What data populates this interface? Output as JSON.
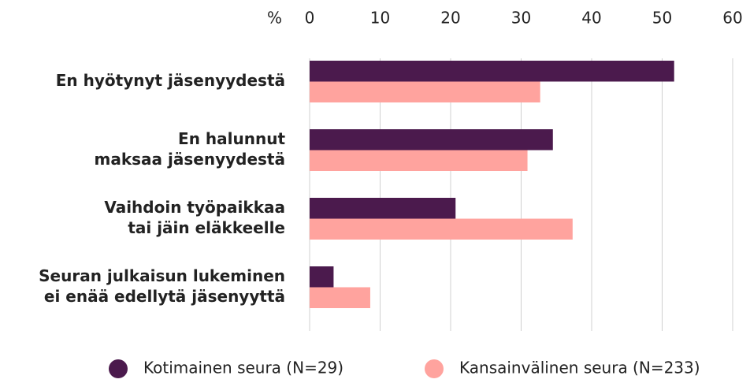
{
  "chart_data": {
    "type": "hbar",
    "xlabel": "%",
    "categories": [
      [
        "En hyötynyt jäsenyydestä"
      ],
      [
        "En halunnut",
        "maksaa jäsenyydestä"
      ],
      [
        "Vaihdoin työpaikkaa",
        "tai jäin eläkkeelle"
      ],
      [
        "Seuran julkaisun lukeminen",
        "ei enää edellytä jäsenyyttä"
      ]
    ],
    "series": [
      {
        "name": "Kotimainen seura (N=29)",
        "color": "#4b1a4d",
        "values": [
          51.7,
          34.5,
          20.7,
          3.4
        ]
      },
      {
        "name": "Kansainvälinen seura (N=233)",
        "color": "#ffa39e",
        "values": [
          32.7,
          30.9,
          37.3,
          8.6
        ]
      }
    ],
    "xlim": [
      0,
      60
    ],
    "xticks": [
      0,
      10,
      20,
      30,
      40,
      50,
      60
    ],
    "grid": true,
    "legend": "bottom"
  }
}
